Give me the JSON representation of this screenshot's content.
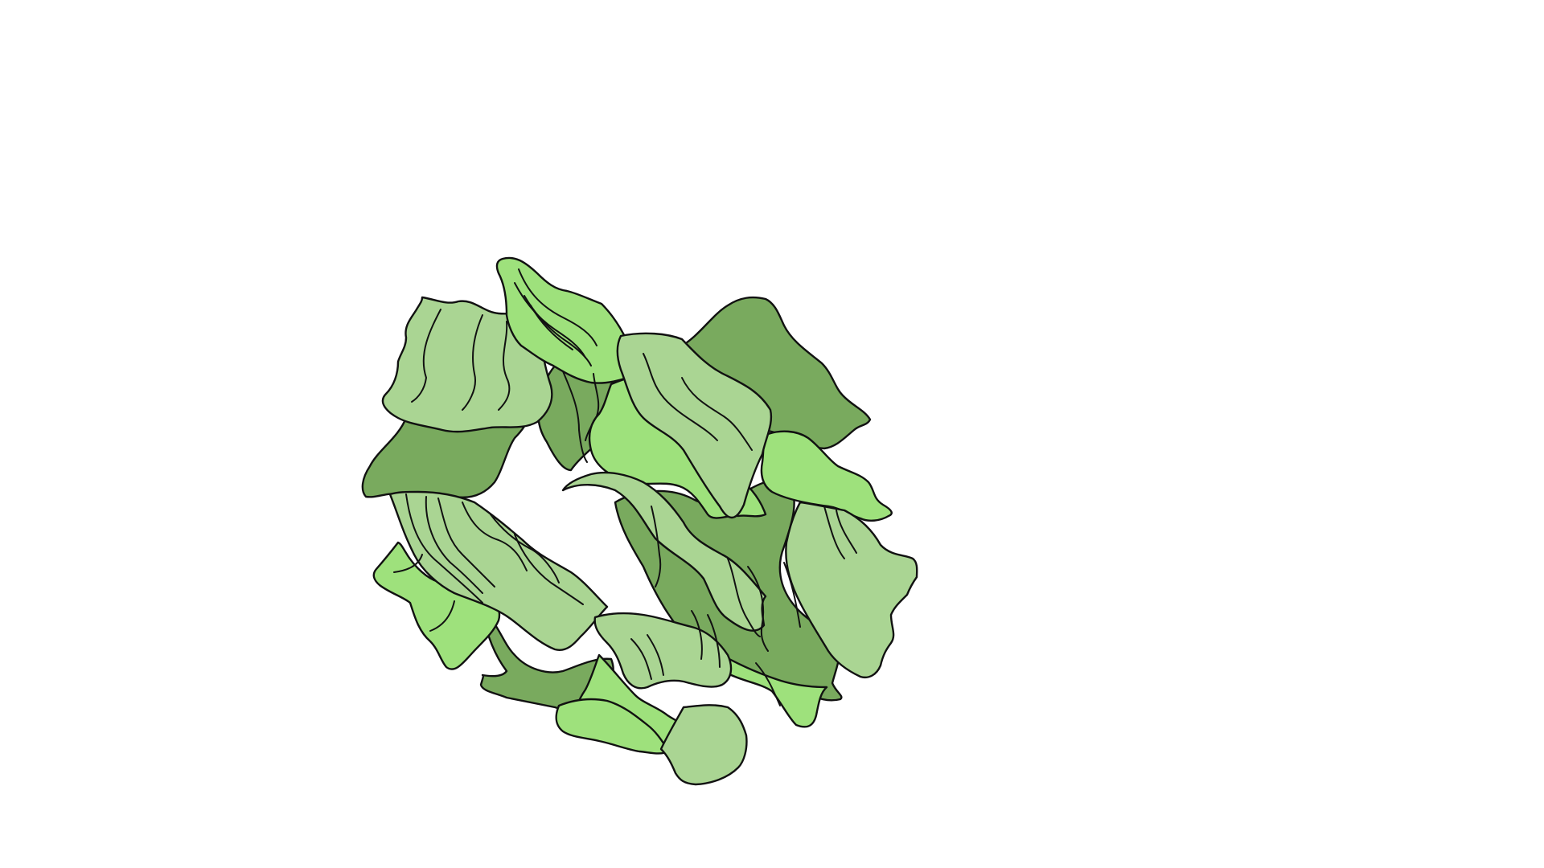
{
  "canvas": {
    "background": "#ffffff"
  },
  "illustration": {
    "subject": "lettuce-head-icon",
    "colors": {
      "light": "#aad593",
      "medium": "#9ee17c",
      "dark": "#79aa5e",
      "outline": "#111111"
    }
  }
}
